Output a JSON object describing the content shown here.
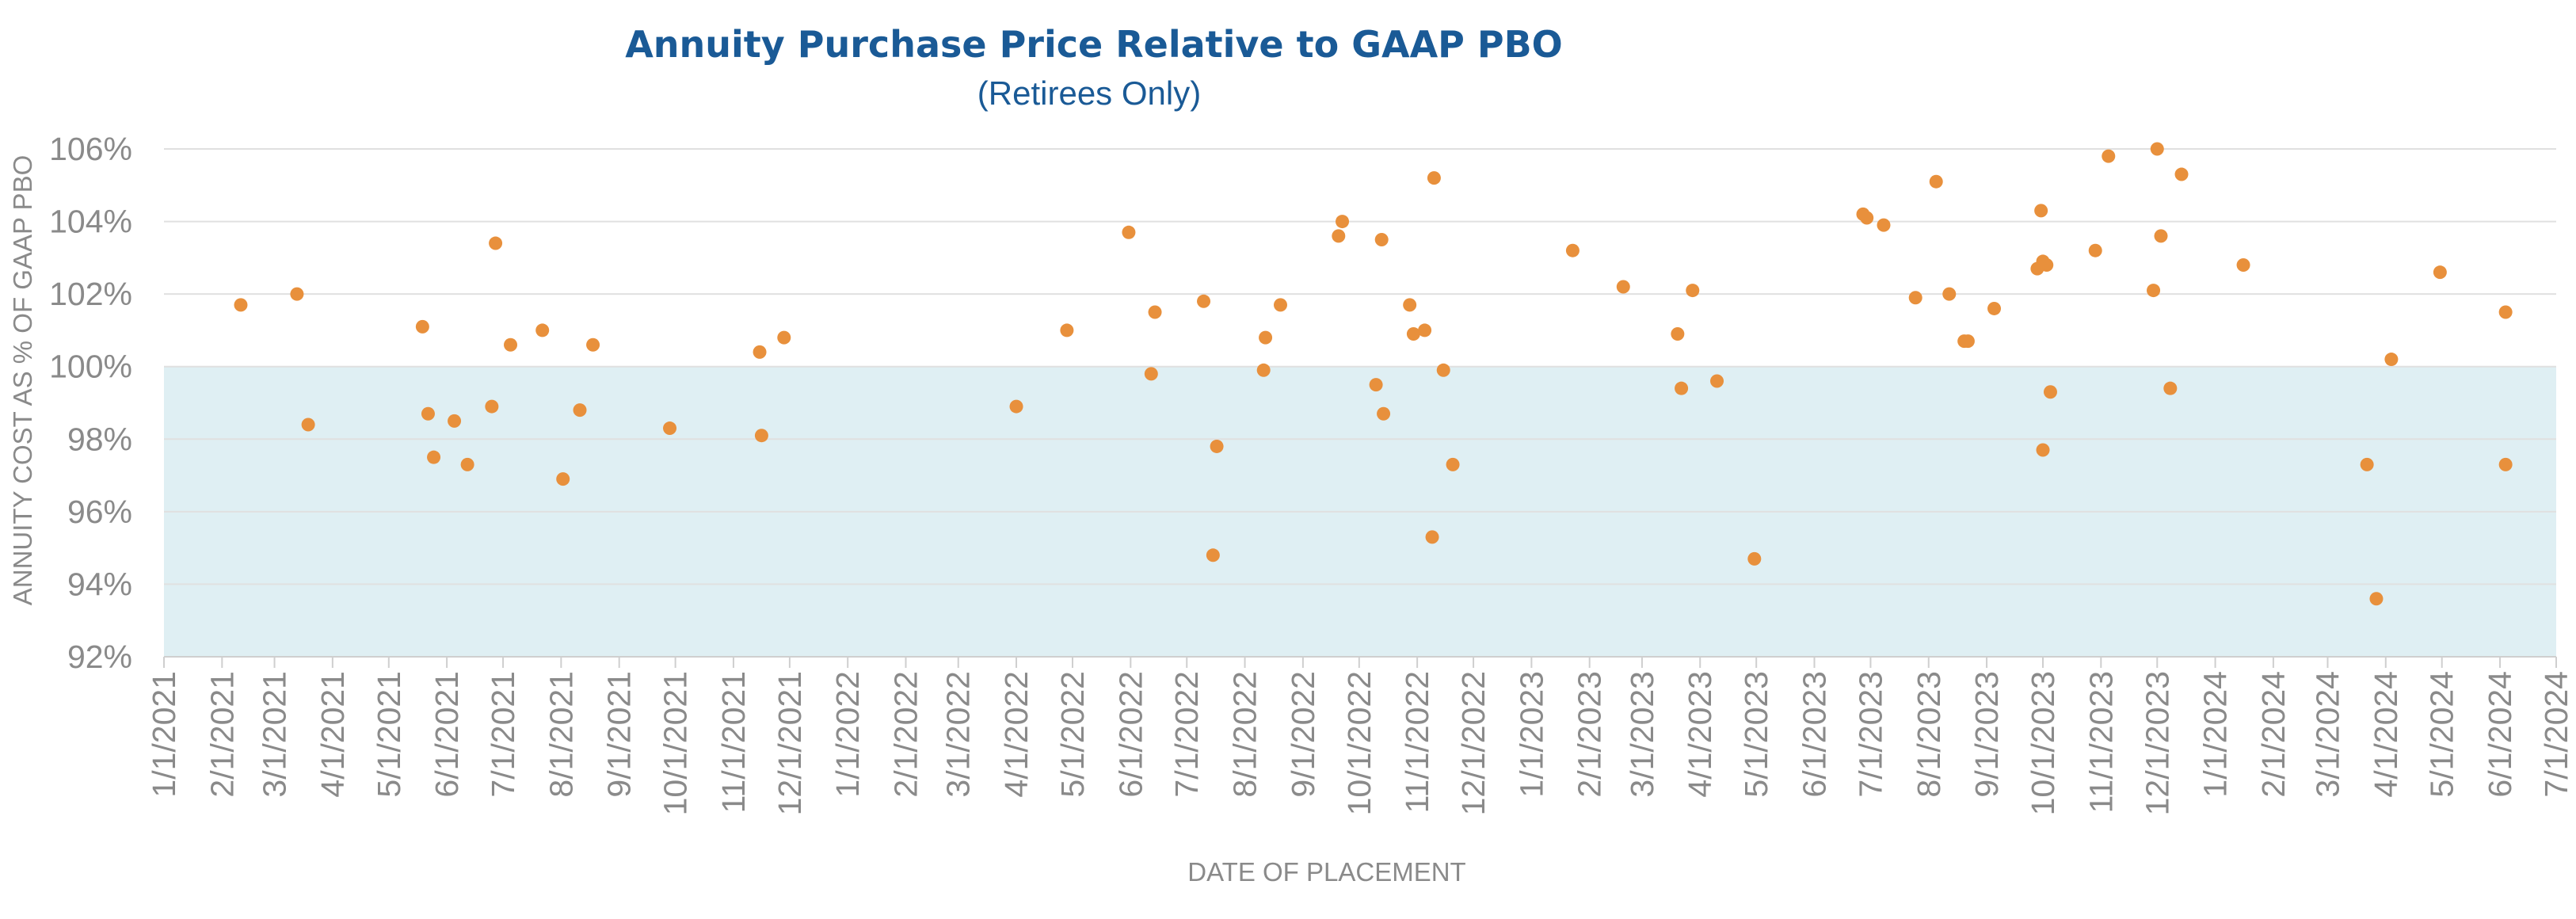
{
  "chart_data": {
    "type": "scatter",
    "title": "Annuity Purchase Price Relative to GAAP PBO",
    "subtitle": "(Retirees Only)",
    "xlabel": "DATE OF PLACEMENT",
    "ylabel": "ANNUITY COST AS % OF GAAP PBO",
    "x_ticks": [
      "1/1/2021",
      "2/1/2021",
      "3/1/2021",
      "4/1/2021",
      "5/1/2021",
      "6/1/2021",
      "7/1/2021",
      "8/1/2021",
      "9/1/2021",
      "10/1/2021",
      "11/1/2021",
      "12/1/2021",
      "1/1/2022",
      "2/1/2022",
      "3/1/2022",
      "4/1/2022",
      "5/1/2022",
      "6/1/2022",
      "7/1/2022",
      "8/1/2022",
      "9/1/2022",
      "10/1/2022",
      "11/1/2022",
      "12/1/2022",
      "1/1/2023",
      "2/1/2023",
      "3/1/2023",
      "4/1/2023",
      "5/1/2023",
      "6/1/2023",
      "7/1/2023",
      "8/1/2023",
      "9/1/2023",
      "10/1/2023",
      "11/1/2023",
      "12/1/2023",
      "1/1/2024",
      "2/1/2024",
      "3/1/2024",
      "4/1/2024",
      "5/1/2024",
      "6/1/2024",
      "7/1/2024"
    ],
    "y_ticks": [
      "92%",
      "94%",
      "96%",
      "98%",
      "100%",
      "102%",
      "104%",
      "106%"
    ],
    "xlim": [
      "1/1/2021",
      "7/1/2024"
    ],
    "ylim": [
      92,
      106
    ],
    "grid": true,
    "shaded_band": {
      "from": 92,
      "to": 100,
      "color": "#dfeff3"
    },
    "colors": {
      "point": "#e8903c",
      "title": "#1a5a96"
    },
    "points": [
      {
        "x": "2/11/2021",
        "y": 101.7
      },
      {
        "x": "3/13/2021",
        "y": 102.0
      },
      {
        "x": "3/19/2021",
        "y": 98.4
      },
      {
        "x": "5/19/2021",
        "y": 101.1
      },
      {
        "x": "5/22/2021",
        "y": 98.7
      },
      {
        "x": "5/25/2021",
        "y": 97.5
      },
      {
        "x": "6/5/2021",
        "y": 98.5
      },
      {
        "x": "6/12/2021",
        "y": 97.3
      },
      {
        "x": "6/25/2021",
        "y": 98.9
      },
      {
        "x": "6/27/2021",
        "y": 103.4
      },
      {
        "x": "7/5/2021",
        "y": 100.6
      },
      {
        "x": "7/22/2021",
        "y": 101.0
      },
      {
        "x": "8/2/2021",
        "y": 96.9
      },
      {
        "x": "8/11/2021",
        "y": 98.8
      },
      {
        "x": "8/18/2021",
        "y": 100.6
      },
      {
        "x": "9/28/2021",
        "y": 98.3
      },
      {
        "x": "11/15/2021",
        "y": 100.4
      },
      {
        "x": "11/16/2021",
        "y": 98.1
      },
      {
        "x": "11/28/2021",
        "y": 100.8
      },
      {
        "x": "4/1/2022",
        "y": 98.9
      },
      {
        "x": "4/28/2022",
        "y": 101.0
      },
      {
        "x": "5/31/2022",
        "y": 103.7
      },
      {
        "x": "6/12/2022",
        "y": 99.8
      },
      {
        "x": "6/14/2022",
        "y": 101.5
      },
      {
        "x": "7/10/2022",
        "y": 101.8
      },
      {
        "x": "7/15/2022",
        "y": 94.8
      },
      {
        "x": "7/17/2022",
        "y": 97.8
      },
      {
        "x": "8/12/2022",
        "y": 100.8
      },
      {
        "x": "8/11/2022",
        "y": 99.9
      },
      {
        "x": "8/20/2022",
        "y": 101.7
      },
      {
        "x": "9/20/2022",
        "y": 103.6
      },
      {
        "x": "9/22/2022",
        "y": 104.0
      },
      {
        "x": "10/10/2022",
        "y": 99.5
      },
      {
        "x": "10/13/2022",
        "y": 103.5
      },
      {
        "x": "10/14/2022",
        "y": 98.7
      },
      {
        "x": "10/28/2022",
        "y": 101.7
      },
      {
        "x": "10/30/2022",
        "y": 100.9
      },
      {
        "x": "11/5/2022",
        "y": 101.0
      },
      {
        "x": "11/9/2022",
        "y": 95.3
      },
      {
        "x": "11/10/2022",
        "y": 105.2
      },
      {
        "x": "11/15/2022",
        "y": 99.9
      },
      {
        "x": "11/20/2022",
        "y": 97.3
      },
      {
        "x": "1/23/2023",
        "y": 103.2
      },
      {
        "x": "2/19/2023",
        "y": 102.2
      },
      {
        "x": "3/20/2023",
        "y": 100.9
      },
      {
        "x": "3/22/2023",
        "y": 99.4
      },
      {
        "x": "3/28/2023",
        "y": 102.1
      },
      {
        "x": "4/10/2023",
        "y": 99.6
      },
      {
        "x": "4/30/2023",
        "y": 94.7
      },
      {
        "x": "6/27/2023",
        "y": 104.2
      },
      {
        "x": "6/29/2023",
        "y": 104.1
      },
      {
        "x": "7/8/2023",
        "y": 103.9
      },
      {
        "x": "7/25/2023",
        "y": 101.9
      },
      {
        "x": "8/5/2023",
        "y": 105.1
      },
      {
        "x": "8/12/2023",
        "y": 102.0
      },
      {
        "x": "8/20/2023",
        "y": 100.7
      },
      {
        "x": "8/22/2023",
        "y": 100.7
      },
      {
        "x": "9/5/2023",
        "y": 101.6
      },
      {
        "x": "9/28/2023",
        "y": 102.7
      },
      {
        "x": "9/30/2023",
        "y": 104.3
      },
      {
        "x": "10/1/2023",
        "y": 102.9
      },
      {
        "x": "10/1/2023",
        "y": 97.7
      },
      {
        "x": "10/3/2023",
        "y": 102.8
      },
      {
        "x": "10/5/2023",
        "y": 99.3
      },
      {
        "x": "10/29/2023",
        "y": 103.2
      },
      {
        "x": "11/5/2023",
        "y": 105.8
      },
      {
        "x": "11/29/2023",
        "y": 102.1
      },
      {
        "x": "12/1/2023",
        "y": 106.0
      },
      {
        "x": "12/3/2023",
        "y": 103.6
      },
      {
        "x": "12/8/2023",
        "y": 99.4
      },
      {
        "x": "12/14/2023",
        "y": 105.3
      },
      {
        "x": "1/16/2024",
        "y": 102.8
      },
      {
        "x": "3/22/2024",
        "y": 97.3
      },
      {
        "x": "3/27/2024",
        "y": 93.6
      },
      {
        "x": "4/4/2024",
        "y": 100.2
      },
      {
        "x": "4/30/2024",
        "y": 102.6
      },
      {
        "x": "6/4/2024",
        "y": 101.5
      },
      {
        "x": "6/4/2024",
        "y": 97.3
      }
    ]
  }
}
